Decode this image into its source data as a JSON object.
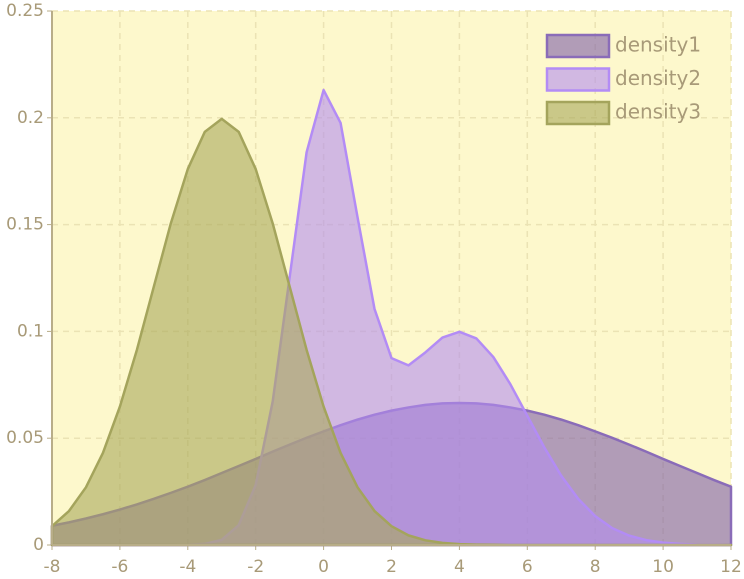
{
  "chart_data": {
    "type": "area",
    "x": [
      -8,
      -7.5,
      -7,
      -6.5,
      -6,
      -5.5,
      -5,
      -4.5,
      -4,
      -3.5,
      -3,
      -2.5,
      -2,
      -1.5,
      -1,
      -0.5,
      0,
      0.5,
      1,
      1.5,
      2,
      2.5,
      3,
      3.5,
      4,
      4.5,
      5,
      5.5,
      6,
      6.5,
      7,
      7.5,
      8,
      8.5,
      9,
      9.5,
      10,
      10.5,
      11,
      11.5,
      12
    ],
    "series": [
      {
        "name": "density1",
        "color": "#7e5fa8",
        "stroke": "#8a6cb8",
        "values": [
          0.009,
          0.0106,
          0.0124,
          0.0144,
          0.0166,
          0.019,
          0.0216,
          0.0244,
          0.0273,
          0.0304,
          0.0337,
          0.037,
          0.0403,
          0.0437,
          0.047,
          0.0502,
          0.0532,
          0.0561,
          0.0587,
          0.061,
          0.0629,
          0.0644,
          0.0656,
          0.0663,
          0.0665,
          0.0663,
          0.0656,
          0.0644,
          0.0629,
          0.061,
          0.0587,
          0.0561,
          0.0532,
          0.0502,
          0.047,
          0.0437,
          0.0403,
          0.037,
          0.0337,
          0.0304,
          0.0273
        ]
      },
      {
        "name": "density2",
        "color": "#b48ef0",
        "stroke": "#b38cf5",
        "values": [
          0,
          0,
          0,
          0,
          0,
          0,
          0,
          0,
          0.0001,
          0.0005,
          0.0024,
          0.0093,
          0.0281,
          0.0671,
          0.1254,
          0.1839,
          0.213,
          0.1976,
          0.1534,
          0.1105,
          0.0875,
          0.0841,
          0.0902,
          0.0971,
          0.0998,
          0.0967,
          0.088,
          0.0753,
          0.0605,
          0.0457,
          0.0324,
          0.0216,
          0.0135,
          0.0079,
          0.0044,
          0.0023,
          0.0011,
          0.0005,
          0.0002,
          0.0001,
          0
        ]
      },
      {
        "name": "density3",
        "color": "#a8a85a",
        "stroke": "#a4a45c",
        "values": [
          0.0088,
          0.0159,
          0.027,
          0.0431,
          0.0648,
          0.0913,
          0.121,
          0.1506,
          0.176,
          0.1934,
          0.1995,
          0.1934,
          0.176,
          0.1506,
          0.121,
          0.0913,
          0.0648,
          0.0431,
          0.027,
          0.0159,
          0.0088,
          0.0045,
          0.0022,
          0.001,
          0.0004,
          0.0002,
          0.0001,
          0,
          0,
          0,
          0,
          0,
          0,
          0,
          0,
          0,
          0,
          0,
          0,
          0,
          0
        ]
      }
    ],
    "xlim": [
      -8,
      12
    ],
    "xticks": [
      -8,
      -6,
      -4,
      -2,
      0,
      2,
      4,
      6,
      8,
      10,
      12
    ],
    "ylim": [
      0,
      0.25
    ],
    "yticks": [
      0,
      0.05,
      0.1,
      0.15,
      0.2,
      0.25
    ],
    "grid": true,
    "legend": "top-right",
    "background": "#fdf8cc",
    "opacity": 0.6
  }
}
